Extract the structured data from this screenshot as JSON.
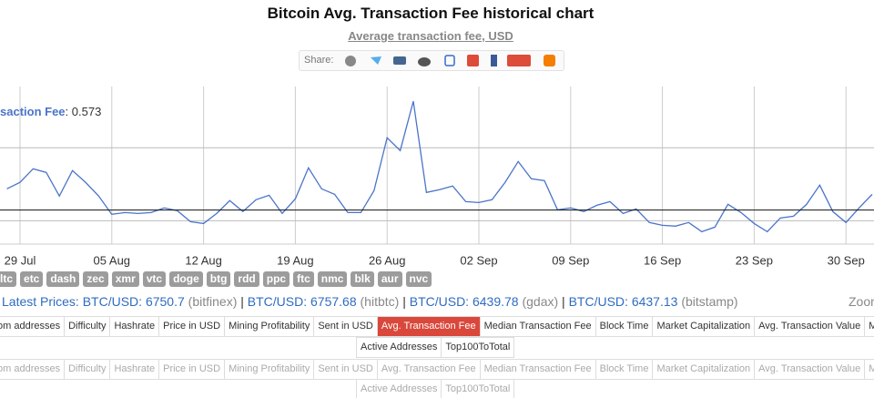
{
  "header": {
    "title": "Bitcoin Avg. Transaction Fee historical chart",
    "subtitle": "Average transaction fee, USD",
    "share_label": "Share:"
  },
  "chart_data": {
    "type": "line",
    "categories": [
      null,
      "29 Jul",
      null,
      null,
      null,
      null,
      null,
      null,
      "05 Aug",
      null,
      null,
      null,
      null,
      null,
      null,
      "12 Aug",
      null,
      null,
      null,
      null,
      null,
      null,
      "19 Aug",
      null,
      null,
      null,
      null,
      null,
      null,
      "26 Aug",
      null,
      null,
      null,
      null,
      null,
      null,
      "02 Sep",
      null,
      null,
      null,
      null,
      null,
      null,
      "09 Sep",
      null,
      null,
      null,
      null,
      null,
      null,
      "16 Sep",
      null,
      null,
      null,
      null,
      null,
      null,
      "23 Sep",
      null,
      null,
      null,
      null,
      null,
      null,
      "30 Sep",
      null,
      null
    ],
    "series": [
      {
        "name": "saction Fee",
        "color": "#4a74c9",
        "values": [
          0.719,
          0.763,
          0.856,
          0.831,
          0.669,
          0.844,
          0.763,
          0.669,
          0.544,
          0.556,
          0.55,
          0.556,
          0.588,
          0.569,
          0.494,
          0.481,
          0.55,
          0.638,
          0.563,
          0.644,
          0.675,
          0.55,
          0.65,
          0.863,
          0.719,
          0.681,
          0.556,
          0.556,
          0.706,
          1.069,
          0.981,
          1.319,
          0.694,
          0.713,
          0.738,
          0.631,
          0.625,
          0.644,
          0.763,
          0.906,
          0.788,
          0.775,
          0.575,
          0.588,
          0.563,
          0.606,
          0.631,
          0.55,
          0.581,
          0.488,
          0.469,
          0.463,
          0.488,
          0.425,
          0.456,
          0.613,
          0.556,
          0.481,
          0.425,
          0.519,
          0.531,
          0.613,
          0.744,
          0.563,
          0.488,
          0.588,
          0.681
        ]
      }
    ],
    "ylim": [
      0.34,
      1.42
    ],
    "yticks": [
      0.5,
      1
    ],
    "grid": true,
    "tooltip": {
      "value": 0.573
    }
  },
  "coins": [
    "ltc",
    "etc",
    "dash",
    "zec",
    "xmr",
    "vtc",
    "doge",
    "btg",
    "rdd",
    "ppc",
    "ftc",
    "nmc",
    "blk",
    "aur",
    "nvc"
  ],
  "prices": {
    "label": "Latest Prices:",
    "separator": "|",
    "items": [
      {
        "pair": "BTC/USD:",
        "price": 6750.7,
        "exchange": "(bitfinex)"
      },
      {
        "pair": "BTC/USD:",
        "price": 6757.68,
        "exchange": "(hitbtc)"
      },
      {
        "pair": "BTC/USD:",
        "price": 6439.78,
        "exchange": "(gdax)"
      },
      {
        "pair": "BTC/USD:",
        "price": 6437.13,
        "exchange": "(bitstamp)"
      }
    ]
  },
  "zoom_label": "Zoon",
  "menu": {
    "tabs": [
      "om addresses",
      "Difficulty",
      "Hashrate",
      "Price in USD",
      "Mining Profitability",
      "Sent in USD",
      "Avg. Transaction Fee",
      "Median Transaction Fee",
      "Block Time",
      "Market Capitalization",
      "Avg. Transaction Value",
      "Median Transa"
    ],
    "active": 6,
    "sub_tabs": [
      "Active Addresses",
      "Top100ToTotal"
    ]
  }
}
